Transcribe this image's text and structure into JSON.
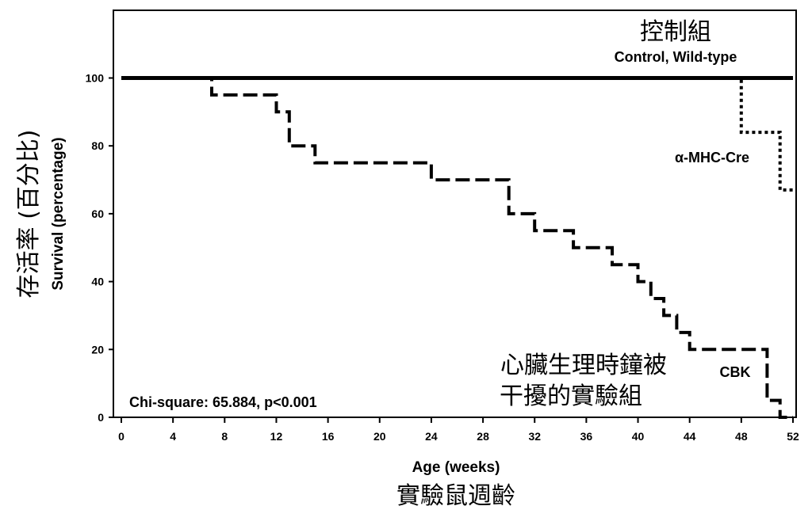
{
  "chart_data": {
    "type": "line",
    "step": true,
    "xlim": [
      0,
      52
    ],
    "ylim": [
      0,
      120
    ],
    "x_ticks": [
      0,
      4,
      8,
      12,
      16,
      20,
      24,
      28,
      32,
      36,
      40,
      44,
      48,
      52
    ],
    "y_ticks": [
      0,
      20,
      40,
      60,
      80,
      100
    ],
    "xlabel": "Age (weeks)",
    "xlabel_cn": "實驗鼠週齡",
    "ylabel": "Survival (percentage)",
    "ylabel_cn": "存活率 (百分比)",
    "series": [
      {
        "name": "Control, Wild-type",
        "name_cn": "控制組",
        "style": "solid",
        "points": [
          [
            0,
            100
          ],
          [
            52,
            100
          ]
        ]
      },
      {
        "name": "α-MHC-Cre",
        "style": "dotted",
        "points": [
          [
            0,
            100
          ],
          [
            48,
            100
          ],
          [
            48,
            84
          ],
          [
            51,
            84
          ],
          [
            51,
            67
          ],
          [
            52,
            67
          ]
        ]
      },
      {
        "name": "CBK",
        "name_cn_line1": "心臟生理時鐘被",
        "name_cn_line2": "干擾的實驗組",
        "style": "dashed",
        "points": [
          [
            0,
            100
          ],
          [
            7,
            100
          ],
          [
            7,
            95
          ],
          [
            12,
            95
          ],
          [
            12,
            90
          ],
          [
            13,
            90
          ],
          [
            13,
            80
          ],
          [
            15,
            80
          ],
          [
            15,
            75
          ],
          [
            24,
            75
          ],
          [
            24,
            70
          ],
          [
            30,
            70
          ],
          [
            30,
            60
          ],
          [
            32,
            60
          ],
          [
            32,
            55
          ],
          [
            35,
            55
          ],
          [
            35,
            50
          ],
          [
            38,
            50
          ],
          [
            38,
            45
          ],
          [
            40,
            45
          ],
          [
            40,
            40
          ],
          [
            41,
            40
          ],
          [
            41,
            35
          ],
          [
            42,
            35
          ],
          [
            42,
            30
          ],
          [
            43,
            30
          ],
          [
            43,
            25
          ],
          [
            44,
            25
          ],
          [
            44,
            20
          ],
          [
            50,
            20
          ],
          [
            50,
            5
          ],
          [
            51,
            5
          ],
          [
            51,
            0
          ],
          [
            52,
            0
          ]
        ]
      }
    ],
    "annotation": "Chi-square: 65.884, p<0.001"
  }
}
